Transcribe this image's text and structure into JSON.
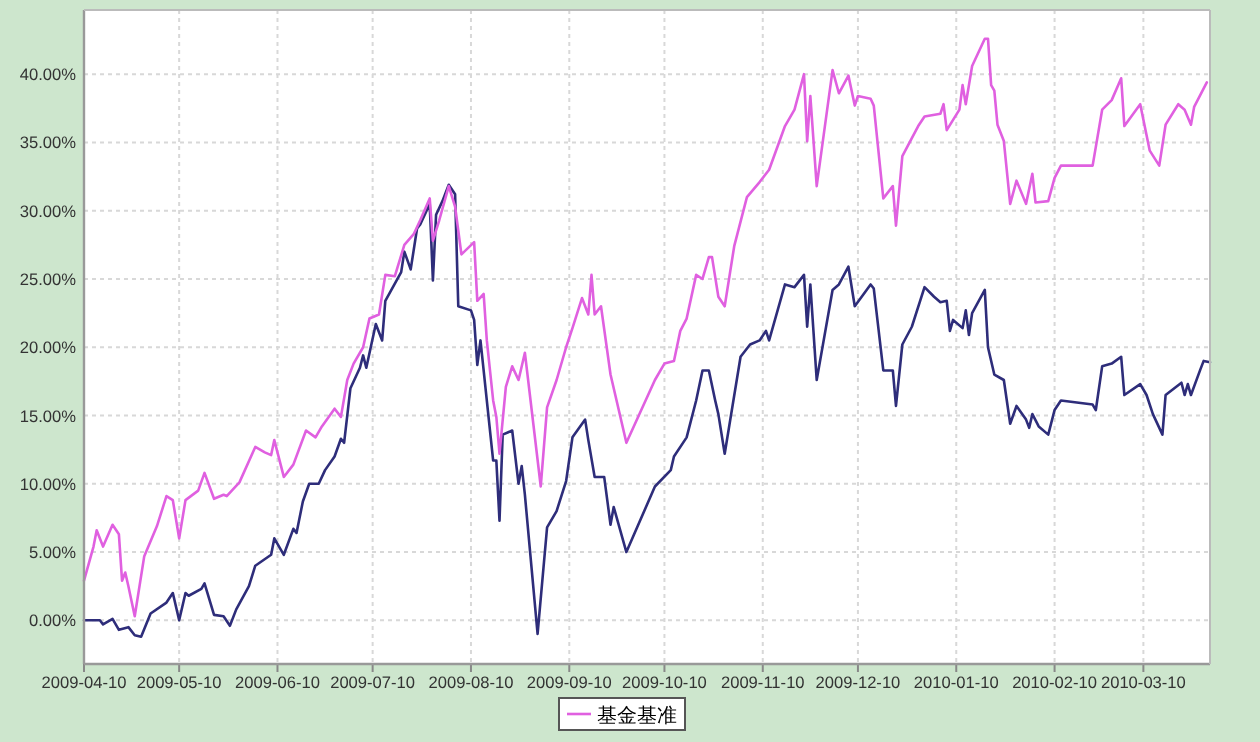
{
  "chart_data": {
    "type": "line",
    "legend": "bottom",
    "grid": true,
    "line_style": "solid",
    "xlim": [
      "2009-04-10",
      "2010-03-31"
    ],
    "xticks": [
      "2009-04-10",
      "2009-05-10",
      "2009-06-10",
      "2009-07-10",
      "2009-08-10",
      "2009-09-10",
      "2009-10-10",
      "2009-11-10",
      "2009-12-10",
      "2010-01-10",
      "2010-02-10",
      "2010-03-10"
    ],
    "ylim": [
      -3.2,
      44.7
    ],
    "yticks": [
      {
        "value": 0,
        "label": "0.00%"
      },
      {
        "value": 5,
        "label": "5.00%"
      },
      {
        "value": 10,
        "label": "10.00%"
      },
      {
        "value": 15,
        "label": "15.00%"
      },
      {
        "value": 20,
        "label": "20.00%"
      },
      {
        "value": 25,
        "label": "25.00%"
      },
      {
        "value": 30,
        "label": "30.00%"
      },
      {
        "value": 35,
        "label": "35.00%"
      },
      {
        "value": 40,
        "label": "40.00%"
      }
    ],
    "series": [
      {
        "color": "#2e2d7a",
        "x": [
          "2009-04-10",
          "2009-04-15",
          "2009-04-16",
          "2009-04-19",
          "2009-04-21",
          "2009-04-24",
          "2009-04-26",
          "2009-04-28",
          "2009-05-01",
          "2009-05-06",
          "2009-05-08",
          "2009-05-10",
          "2009-05-12",
          "2009-05-13",
          "2009-05-17",
          "2009-05-18",
          "2009-05-21",
          "2009-05-24",
          "2009-05-26",
          "2009-05-28",
          "2009-06-01",
          "2009-06-03",
          "2009-06-08",
          "2009-06-09",
          "2009-06-12",
          "2009-06-15",
          "2009-06-16",
          "2009-06-18",
          "2009-06-20",
          "2009-06-23",
          "2009-06-25",
          "2009-06-28",
          "2009-06-30",
          "2009-07-01",
          "2009-07-03",
          "2009-07-06",
          "2009-07-07",
          "2009-07-08",
          "2009-07-11",
          "2009-07-13",
          "2009-07-14",
          "2009-07-19",
          "2009-07-20",
          "2009-07-22",
          "2009-07-24",
          "2009-07-25",
          "2009-07-28",
          "2009-07-29",
          "2009-07-30",
          "2009-08-01",
          "2009-08-03",
          "2009-08-05",
          "2009-08-06",
          "2009-08-10",
          "2009-08-11",
          "2009-08-12",
          "2009-08-13",
          "2009-08-17",
          "2009-08-18",
          "2009-08-19",
          "2009-08-20",
          "2009-08-23",
          "2009-08-25",
          "2009-08-26",
          "2009-08-27",
          "2009-08-31",
          "2009-09-03",
          "2009-09-06",
          "2009-09-09",
          "2009-09-11",
          "2009-09-15",
          "2009-09-16",
          "2009-09-18",
          "2009-09-21",
          "2009-09-23",
          "2009-09-24",
          "2009-09-28",
          "2009-10-07",
          "2009-10-12",
          "2009-10-13",
          "2009-10-17",
          "2009-10-20",
          "2009-10-22",
          "2009-10-24",
          "2009-10-26",
          "2009-10-27",
          "2009-10-29",
          "2009-11-03",
          "2009-11-06",
          "2009-11-09",
          "2009-11-11",
          "2009-11-12",
          "2009-11-17",
          "2009-11-20",
          "2009-11-23",
          "2009-11-24",
          "2009-11-25",
          "2009-11-27",
          "2009-12-02",
          "2009-12-04",
          "2009-12-07",
          "2009-12-09",
          "2009-12-14",
          "2009-12-15",
          "2009-12-18",
          "2009-12-21",
          "2009-12-22",
          "2009-12-24",
          "2009-12-27",
          "2009-12-31",
          "2010-01-03",
          "2010-01-05",
          "2010-01-07",
          "2010-01-08",
          "2010-01-09",
          "2010-01-12",
          "2010-01-13",
          "2010-01-14",
          "2010-01-15",
          "2010-01-19",
          "2010-01-20",
          "2010-01-22",
          "2010-01-25",
          "2010-01-27",
          "2010-01-29",
          "2010-02-01",
          "2010-02-02",
          "2010-02-03",
          "2010-02-05",
          "2010-02-08",
          "2010-02-10",
          "2010-02-12",
          "2010-02-22",
          "2010-02-23",
          "2010-02-25",
          "2010-02-28",
          "2010-03-03",
          "2010-03-04",
          "2010-03-09",
          "2010-03-11",
          "2010-03-13",
          "2010-03-16",
          "2010-03-17",
          "2010-03-22",
          "2010-03-23",
          "2010-03-24",
          "2010-03-25",
          "2010-03-28",
          "2010-03-29",
          "2010-03-31"
        ],
        "values": [
          0.0,
          0.0,
          -0.3,
          0.1,
          -0.7,
          -0.5,
          -1.1,
          -1.2,
          0.5,
          1.3,
          2.0,
          0.0,
          2.0,
          1.8,
          2.3,
          2.7,
          0.4,
          0.3,
          -0.4,
          0.8,
          2.5,
          4.0,
          4.8,
          6.0,
          4.8,
          6.7,
          6.4,
          8.7,
          10.0,
          10.0,
          11.0,
          12.0,
          13.3,
          13.0,
          17.0,
          18.5,
          19.4,
          18.5,
          21.7,
          20.5,
          23.4,
          25.5,
          27.0,
          25.7,
          28.7,
          29.0,
          30.5,
          24.9,
          29.7,
          30.7,
          31.9,
          31.2,
          23.0,
          22.7,
          22.0,
          18.7,
          20.5,
          11.7,
          11.7,
          7.3,
          13.6,
          13.9,
          10.0,
          11.3,
          9.2,
          -1.0,
          6.8,
          8.0,
          10.2,
          13.4,
          14.7,
          13.2,
          10.5,
          10.5,
          7.0,
          8.3,
          5.0,
          9.8,
          11.0,
          12.0,
          13.4,
          16.1,
          18.3,
          18.3,
          16.1,
          15.1,
          12.2,
          19.3,
          20.2,
          20.5,
          21.2,
          20.5,
          24.6,
          24.4,
          25.3,
          21.5,
          24.6,
          17.6,
          24.2,
          24.6,
          25.9,
          23.0,
          24.6,
          24.3,
          18.3,
          18.3,
          15.7,
          20.2,
          21.5,
          24.4,
          23.7,
          23.3,
          23.4,
          21.2,
          22.0,
          21.4,
          22.7,
          20.9,
          22.5,
          24.2,
          20.0,
          18.0,
          17.6,
          14.4,
          15.7,
          14.7,
          14.1,
          15.1,
          14.2,
          13.6,
          15.4,
          16.1,
          15.8,
          15.4,
          18.6,
          18.8,
          19.3,
          16.5,
          17.3,
          16.5,
          15.1,
          13.6,
          16.5,
          17.4,
          16.5,
          17.3,
          16.5,
          18.4,
          19.0,
          18.9
        ]
      },
      {
        "name": "基金基准",
        "color": "#e060e0",
        "x": [
          "2009-04-10",
          "2009-04-13",
          "2009-04-14",
          "2009-04-16",
          "2009-04-19",
          "2009-04-21",
          "2009-04-22",
          "2009-04-23",
          "2009-04-24",
          "2009-04-26",
          "2009-04-29",
          "2009-05-03",
          "2009-05-06",
          "2009-05-08",
          "2009-05-10",
          "2009-05-12",
          "2009-05-16",
          "2009-05-18",
          "2009-05-21",
          "2009-05-24",
          "2009-05-25",
          "2009-05-29",
          "2009-06-03",
          "2009-06-06",
          "2009-06-08",
          "2009-06-09",
          "2009-06-12",
          "2009-06-15",
          "2009-06-19",
          "2009-06-22",
          "2009-06-24",
          "2009-06-28",
          "2009-06-30",
          "2009-07-02",
          "2009-07-04",
          "2009-07-07",
          "2009-07-09",
          "2009-07-12",
          "2009-07-14",
          "2009-07-17",
          "2009-07-20",
          "2009-07-23",
          "2009-07-25",
          "2009-07-28",
          "2009-07-29",
          "2009-07-31",
          "2009-08-03",
          "2009-08-05",
          "2009-08-07",
          "2009-08-11",
          "2009-08-12",
          "2009-08-14",
          "2009-08-15",
          "2009-08-17",
          "2009-08-18",
          "2009-08-19",
          "2009-08-21",
          "2009-08-23",
          "2009-08-25",
          "2009-08-27",
          "2009-09-01",
          "2009-09-03",
          "2009-09-06",
          "2009-09-09",
          "2009-09-11",
          "2009-09-14",
          "2009-09-16",
          "2009-09-17",
          "2009-09-18",
          "2009-09-20",
          "2009-09-23",
          "2009-09-28",
          "2009-10-07",
          "2009-10-10",
          "2009-10-13",
          "2009-10-15",
          "2009-10-17",
          "2009-10-20",
          "2009-10-22",
          "2009-10-24",
          "2009-10-25",
          "2009-10-27",
          "2009-10-29",
          "2009-11-01",
          "2009-11-05",
          "2009-11-09",
          "2009-11-12",
          "2009-11-17",
          "2009-11-20",
          "2009-11-23",
          "2009-11-24",
          "2009-11-25",
          "2009-11-27",
          "2009-12-02",
          "2009-12-04",
          "2009-12-07",
          "2009-12-09",
          "2009-12-10",
          "2009-12-14",
          "2009-12-15",
          "2009-12-18",
          "2009-12-21",
          "2009-12-22",
          "2009-12-24",
          "2009-12-29",
          "2009-12-31",
          "2010-01-05",
          "2010-01-06",
          "2010-01-07",
          "2010-01-11",
          "2010-01-12",
          "2010-01-13",
          "2010-01-15",
          "2010-01-19",
          "2010-01-20",
          "2010-01-21",
          "2010-01-22",
          "2010-01-23",
          "2010-01-25",
          "2010-01-27",
          "2010-01-29",
          "2010-02-01",
          "2010-02-03",
          "2010-02-04",
          "2010-02-08",
          "2010-02-10",
          "2010-02-12",
          "2010-02-22",
          "2010-02-25",
          "2010-02-28",
          "2010-03-03",
          "2010-03-04",
          "2010-03-09",
          "2010-03-12",
          "2010-03-15",
          "2010-03-17",
          "2010-03-21",
          "2010-03-23",
          "2010-03-25",
          "2010-03-26",
          "2010-03-30"
        ],
        "values": [
          2.9,
          5.4,
          6.6,
          5.4,
          7.0,
          6.3,
          2.9,
          3.5,
          2.5,
          0.3,
          4.7,
          6.9,
          9.1,
          8.8,
          6.0,
          8.8,
          9.5,
          10.8,
          8.9,
          9.2,
          9.1,
          10.1,
          12.7,
          12.3,
          12.1,
          13.2,
          10.5,
          11.4,
          13.9,
          13.4,
          14.2,
          15.5,
          14.9,
          17.6,
          18.8,
          20.0,
          22.1,
          22.4,
          25.3,
          25.2,
          27.5,
          28.3,
          29.3,
          30.9,
          27.8,
          29.3,
          31.8,
          30.3,
          26.8,
          27.7,
          23.4,
          23.9,
          20.5,
          16.1,
          14.9,
          12.2,
          17.1,
          18.6,
          17.6,
          19.6,
          9.8,
          15.6,
          17.6,
          20.0,
          21.4,
          23.6,
          22.4,
          25.3,
          22.4,
          23.0,
          18.0,
          13.0,
          17.6,
          18.8,
          19.0,
          21.2,
          22.1,
          25.3,
          25.0,
          26.6,
          26.6,
          23.7,
          23.0,
          27.4,
          31.0,
          32.1,
          33.0,
          36.2,
          37.4,
          40.0,
          35.1,
          38.4,
          31.8,
          40.3,
          38.6,
          39.9,
          37.7,
          38.4,
          38.2,
          37.7,
          30.9,
          31.8,
          28.9,
          34.0,
          36.2,
          36.9,
          37.1,
          37.8,
          35.9,
          37.4,
          39.2,
          37.8,
          40.6,
          42.6,
          42.6,
          39.2,
          38.8,
          36.3,
          35.1,
          30.5,
          32.2,
          30.5,
          32.7,
          30.6,
          30.7,
          32.4,
          33.3,
          33.3,
          37.4,
          38.1,
          39.7,
          36.2,
          37.8,
          34.4,
          33.3,
          36.3,
          37.8,
          37.4,
          36.3,
          37.6,
          39.4
        ]
      }
    ]
  }
}
